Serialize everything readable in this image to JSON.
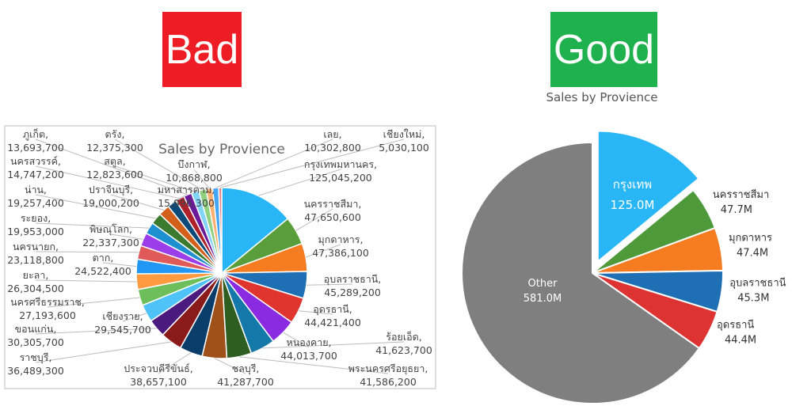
{
  "labels": {
    "bad": "Bad",
    "good": "Good"
  },
  "chart_data": [
    {
      "type": "pie",
      "title": "Sales by Provience",
      "label_format": "category, value",
      "categories": [
        "กรุงเทพมหานคร",
        "นครราชสีมา",
        "มุกดาหาร",
        "อุบลราชธานี",
        "อุดรธานี",
        "หนองคาย",
        "ร้อยเอ็ด",
        "พระนครศรีอยุธยา",
        "ชลบุรี",
        "ประจวบคีรีขันธ์",
        "ราชบุรี",
        "ขอนแก่น",
        "เชียงราย",
        "นครศรีธรรมราช",
        "ยะลา",
        "ตาก",
        "นครนายก",
        "พิษณุโลก",
        "ระยอง",
        "น่าน",
        "ปราจีนบุรี",
        "มหาสารคาม",
        "นครสวรรค์",
        "ภูเก็ต",
        "สตูล",
        "ตรัง",
        "บึงกาฬ",
        "เลย",
        "เชียงใหม่"
      ],
      "values": [
        125045200,
        47650600,
        47386100,
        45289200,
        44421400,
        44013700,
        41623700,
        41586200,
        41287700,
        38657100,
        36489300,
        30305700,
        29545700,
        27193600,
        26304500,
        24522400,
        23118800,
        22337300,
        19953000,
        19257400,
        19000200,
        15996300,
        14747200,
        13693700,
        12823600,
        12375300,
        10868800,
        10302800,
        5030100
      ],
      "value_labels": [
        "125,045,200",
        "47,650,600",
        "47,386,100",
        "45,289,200",
        "44,421,400",
        "44,013,700",
        "41,623,700",
        "41,586,200",
        "41,287,700",
        "38,657,100",
        "36,489,300",
        "30,305,700",
        "29,545,700",
        "27,193,600",
        "26,304,500",
        "24,522,400",
        "23,118,800",
        "22,337,300",
        "19,953,000",
        "19,257,400",
        "19,000,200",
        "15,996,300",
        "14,747,200",
        "13,693,700",
        "12,823,600",
        "12,375,300",
        "10,868,800",
        "10,302,800",
        "5,030,100"
      ],
      "colors": [
        "#29b6f6",
        "#5a9e3c",
        "#f57c20",
        "#1f6fb5",
        "#e0352f",
        "#8a2be2",
        "#1478a8",
        "#2e5e22",
        "#a0501a",
        "#0b3d6b",
        "#8b1a1a",
        "#4b1a7e",
        "#4fc3f7",
        "#6cbf5a",
        "#ff9a40",
        "#2196f3",
        "#e05a5a",
        "#9b3de8",
        "#1e90d0",
        "#3c7a30",
        "#d2601a",
        "#0d4a7a",
        "#b0202a",
        "#6a1a9a",
        "#81d4fa",
        "#90d080",
        "#ffb070",
        "#42a5f5",
        "#f08080"
      ]
    },
    {
      "type": "pie",
      "title": "Sales by Provience",
      "categories": [
        "กรุงเทพ",
        "นครราชสีมา",
        "มุกดาหาร",
        "อุบลราชธานี",
        "อุดรธานี",
        "Other"
      ],
      "values": [
        125.0,
        47.7,
        47.4,
        45.3,
        44.4,
        581.0
      ],
      "value_labels": [
        "125.0M",
        "47.7M",
        "47.4M",
        "45.3M",
        "44.4M",
        "581.0M"
      ],
      "unit": "M",
      "exploded": "กรุงเทพ",
      "colors": [
        "#29b6f6",
        "#4e9a3a",
        "#f57c20",
        "#1f6fb5",
        "#dd3333",
        "#7f7f7f"
      ]
    }
  ]
}
